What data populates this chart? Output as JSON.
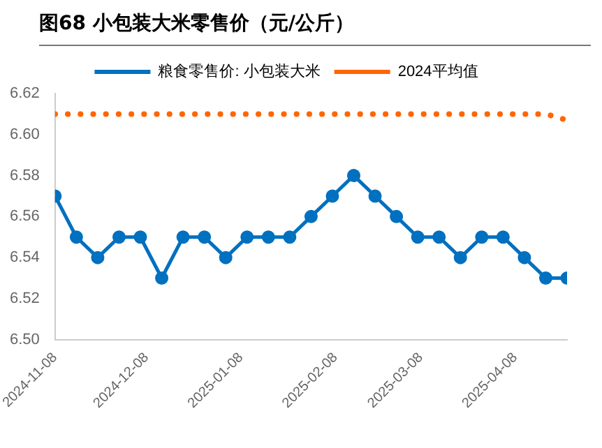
{
  "chart_data": {
    "type": "line",
    "title": "图68 小包装大米零售价（元/公斤）",
    "x": [
      "2024-11-08",
      "2024-11-15",
      "2024-11-22",
      "2024-11-29",
      "2024-12-06",
      "2024-12-13",
      "2024-12-20",
      "2024-12-27",
      "2025-01-03",
      "2025-01-10",
      "2025-01-17",
      "2025-01-24",
      "2025-01-31",
      "2025-02-07",
      "2025-02-14",
      "2025-02-21",
      "2025-02-28",
      "2025-03-07",
      "2025-03-14",
      "2025-03-21",
      "2025-03-28",
      "2025-04-04",
      "2025-04-11",
      "2025-04-18",
      "2025-04-25"
    ],
    "series": [
      {
        "name": "粮食零售价: 小包装大米",
        "color": "#0070c0",
        "marker": "circle",
        "line_style": "solid",
        "values": [
          6.57,
          6.55,
          6.54,
          6.55,
          6.55,
          6.53,
          6.55,
          6.55,
          6.54,
          6.55,
          6.55,
          6.55,
          6.56,
          6.57,
          6.58,
          6.57,
          6.56,
          6.55,
          6.55,
          6.54,
          6.55,
          6.55,
          6.54,
          6.53,
          6.53
        ]
      },
      {
        "name": "2024平均值",
        "color": "#ff6600",
        "marker": "none",
        "line_style": "dotted",
        "values": [
          6.61,
          6.61,
          6.61,
          6.61,
          6.61,
          6.61,
          6.61,
          6.61,
          6.61,
          6.61,
          6.61,
          6.61,
          6.61,
          6.61,
          6.61,
          6.61,
          6.61,
          6.61,
          6.61,
          6.61,
          6.61,
          6.61,
          6.61,
          6.61,
          6.607
        ]
      }
    ],
    "xlim": [
      "2024-11-08",
      "2025-04-25"
    ],
    "xticks": [
      "2024-11-08",
      "2024-12-08",
      "2025-01-08",
      "2025-02-08",
      "2025-03-08",
      "2025-04-08"
    ],
    "ylim": [
      6.5,
      6.62
    ],
    "yticks": [
      {
        "value": 6.5,
        "label": "6.50"
      },
      6.52,
      6.54,
      6.56,
      6.58,
      {
        "value": 6.6,
        "label": "6.60"
      },
      6.62
    ],
    "grid": false,
    "legend": "top"
  }
}
